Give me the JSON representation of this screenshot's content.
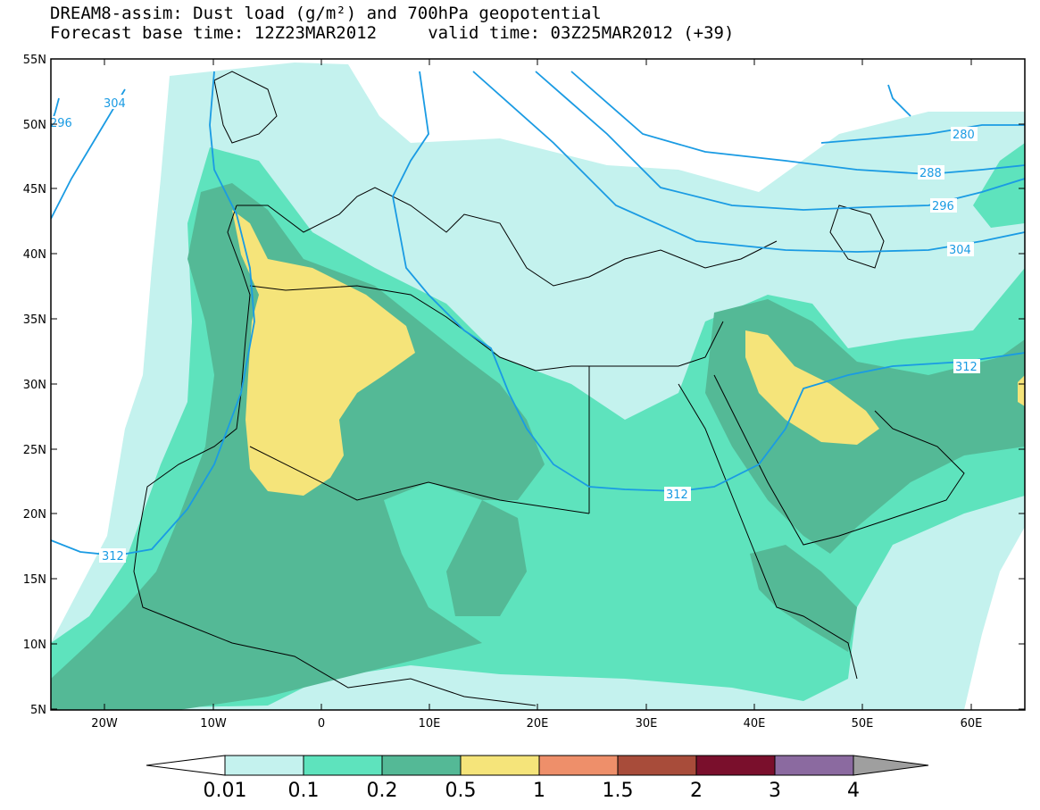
{
  "title": {
    "line1": "DREAM8-assim: Dust load (g/m²) and 700hPa geopotential",
    "line2": "Forecast base time: 12Z23MAR2012     valid time: 03Z25MAR2012 (+39)"
  },
  "map": {
    "lon_range": [
      -25,
      65
    ],
    "lat_range": [
      5,
      55
    ],
    "lat_ticks": [
      "5N",
      "10N",
      "15N",
      "20N",
      "25N",
      "30N",
      "35N",
      "40N",
      "45N",
      "50N",
      "55N"
    ],
    "lon_ticks": [
      "20W",
      "10W",
      "0",
      "10E",
      "20E",
      "30E",
      "40E",
      "50E",
      "60E"
    ],
    "dust_levels": [
      {
        "value": "0.01",
        "color": "#c4f2ee"
      },
      {
        "value": "0.1",
        "color": "#5ee3bd"
      },
      {
        "value": "0.2",
        "color": "#54b996"
      },
      {
        "value": "0.5",
        "color": "#f5e47a"
      },
      {
        "value": "1",
        "color": "#ee8f6a"
      },
      {
        "value": "1.5",
        "color": "#a84c3a"
      },
      {
        "value": "2",
        "color": "#7a0f2c"
      },
      {
        "value": "3",
        "color": "#8b6aa0"
      },
      {
        "value": "4",
        "color": "#9f9f9f"
      }
    ],
    "contour_labels": [
      "296",
      "304",
      "312",
      "280",
      "288",
      "296",
      "304",
      "312",
      "312"
    ]
  }
}
